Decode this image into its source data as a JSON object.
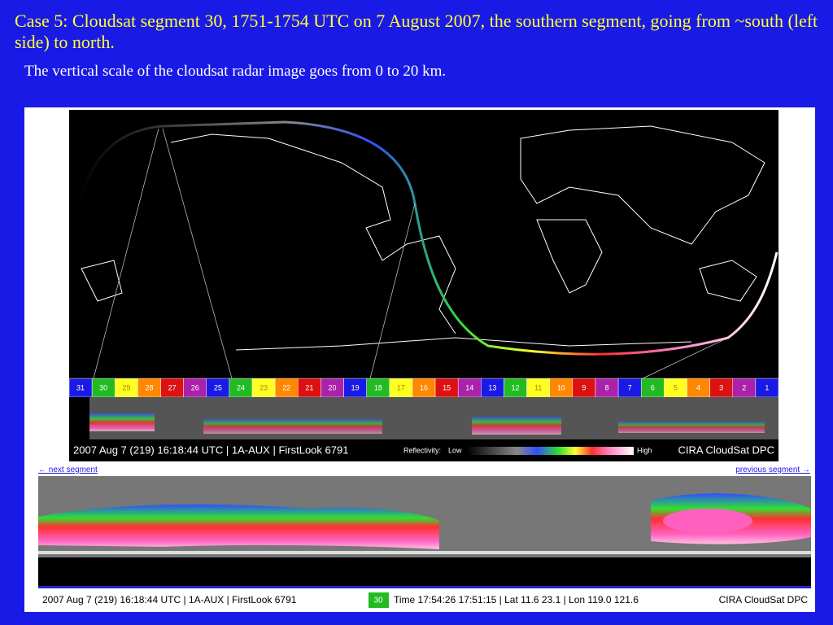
{
  "header": {
    "title": "Case 5: Cloudsat segment 30, 1751-1754 UTC on 7 August 2007, the southern segment, going from ~south (left side) to north.",
    "subtitle": "The vertical scale of the cloudsat radar image goes from 0 to 20 km."
  },
  "overview": {
    "segments": [
      31,
      30,
      29,
      28,
      27,
      26,
      25,
      24,
      23,
      22,
      21,
      20,
      19,
      18,
      17,
      16,
      15,
      14,
      13,
      12,
      11,
      10,
      9,
      8,
      7,
      6,
      5,
      4,
      3,
      2,
      1
    ],
    "caption": "2007 Aug 7 (219) 16:18:44 UTC | 1A-AUX | FirstLook 6791",
    "legend_label": "Reflectivity:",
    "legend_low": "Low",
    "legend_high": "High",
    "credit": "CIRA CloudSat DPC"
  },
  "navigation": {
    "next": "← next segment",
    "previous": "previous segment →"
  },
  "detail": {
    "caption": "2007 Aug 7 (219) 16:18:44 UTC | 1A-AUX | FirstLook 6791",
    "segment": "30",
    "info": "Time 17:54:26 17:51:15 | Lat 11.6 23.1 | Lon 119.0 121.6",
    "credit": "CIRA CloudSat DPC"
  }
}
